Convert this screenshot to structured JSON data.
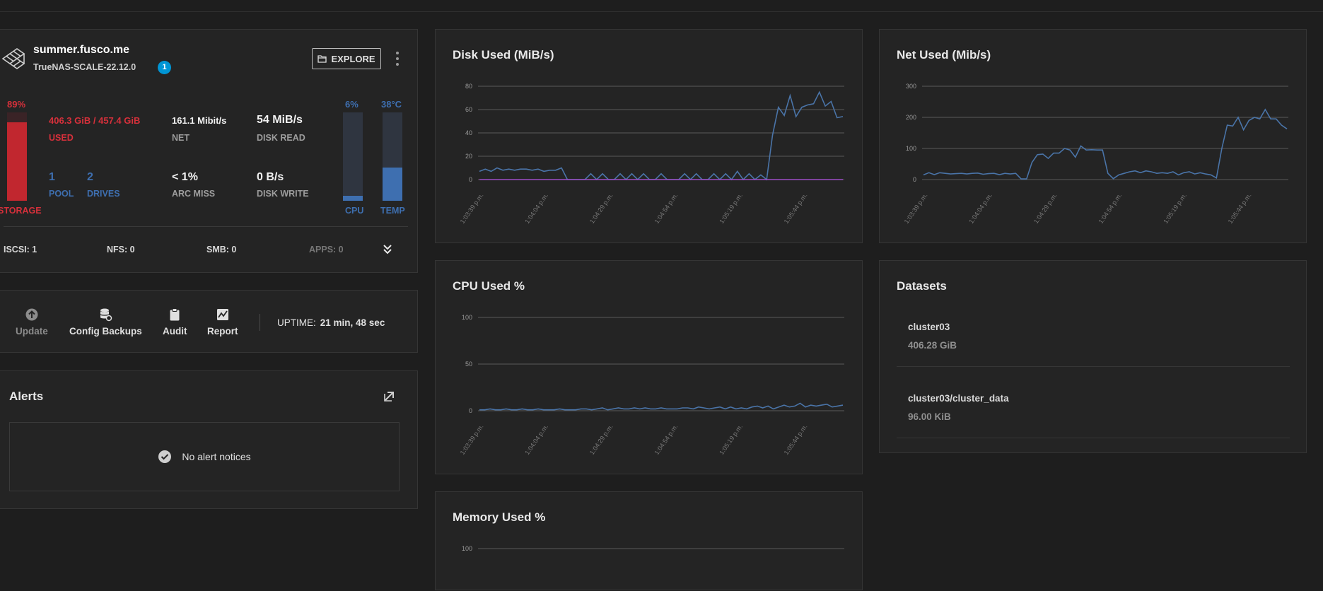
{
  "system": {
    "hostname": "summer.fusco.me",
    "version": "TrueNAS-SCALE-22.12.0",
    "update_badge": "1",
    "explore_label": "EXPLORE",
    "storage_pct": "89%",
    "storage_fill": 0.89,
    "storage_label": "STORAGE",
    "used_value": "406.3 GiB / 457.4 GiB",
    "used_label": "USED",
    "pool_count": "1",
    "pool_label": "POOL",
    "drives_count": "2",
    "drives_label": "DRIVES",
    "net_value": "161.1 Mibit/s",
    "net_label": "NET",
    "arc_value": "< 1%",
    "arc_label": "ARC MISS",
    "disk_read_value": "54 MiB/s",
    "disk_read_label": "DISK READ",
    "disk_write_value": "0 B/s",
    "disk_write_label": "DISK WRITE",
    "cpu_pct": "6%",
    "cpu_fill": 0.06,
    "cpu_label": "CPU",
    "temp_value": "38°C",
    "temp_fill": 0.38,
    "temp_label": "TEMP",
    "services": {
      "iscsi": "ISCSI: 1",
      "nfs": "NFS: 0",
      "smb": "SMB: 0",
      "apps": "APPS: 0"
    }
  },
  "actions": {
    "update": "Update",
    "config_backups": "Config Backups",
    "audit": "Audit",
    "report": "Report",
    "uptime_label": "UPTIME:",
    "uptime_value": "21 min, 48 sec"
  },
  "alerts": {
    "title": "Alerts",
    "empty_text": "No alert notices"
  },
  "datasets": {
    "title": "Datasets",
    "items": [
      {
        "name": "cluster03",
        "size": "406.28 GiB"
      },
      {
        "name": "cluster03/cluster_data",
        "size": "96.00 KiB"
      }
    ]
  },
  "colors": {
    "accent_red": "#d6303b",
    "accent_blue": "#3e6fb0",
    "line_blue": "#4a74a8",
    "line_purple": "#9b4dc4"
  },
  "chart_data": [
    {
      "id": "disk",
      "type": "line",
      "title": "Disk Used (MiB/s)",
      "ylim": [
        0,
        80
      ],
      "yticks": [
        "0",
        "20",
        "40",
        "60",
        "80"
      ],
      "ytick_values": [
        0,
        20,
        40,
        60,
        80
      ],
      "xtick_labels": [
        "1:03:39 p.m.",
        "1:04:04 p.m.",
        "1:04:29 p.m.",
        "1:04:54 p.m.",
        "1:05:19 p.m.",
        "1:05:44 p.m."
      ],
      "series": [
        {
          "name": "read",
          "color": "#4a74a8",
          "values": [
            7,
            9,
            7,
            10,
            8,
            9,
            8,
            9,
            9,
            8,
            9,
            7,
            8,
            8,
            10,
            0,
            0,
            0,
            0,
            5,
            0,
            5,
            0,
            0,
            5,
            0,
            5,
            0,
            5,
            0,
            0,
            5,
            0,
            0,
            0,
            5,
            0,
            5,
            0,
            0,
            5,
            0,
            5,
            0,
            7,
            0,
            5,
            0,
            4,
            0,
            38,
            62,
            55,
            72,
            54,
            62,
            64,
            65,
            75,
            63,
            67,
            53,
            54
          ]
        },
        {
          "name": "write",
          "color": "#9b4dc4",
          "values": [
            0,
            0,
            0,
            0,
            0,
            0,
            0,
            0,
            0,
            0,
            0,
            0,
            0,
            0,
            0,
            0,
            0,
            0,
            0,
            0,
            0,
            0,
            0,
            0,
            0,
            0,
            0,
            0,
            0,
            0,
            0,
            0,
            0,
            0,
            0,
            0,
            0,
            0,
            0,
            0,
            0,
            0,
            0,
            0,
            0,
            0,
            0,
            0,
            0,
            0,
            0,
            0,
            0,
            0,
            0,
            0,
            0,
            0,
            0,
            0,
            0,
            0,
            0
          ]
        }
      ]
    },
    {
      "id": "net",
      "type": "line",
      "title": "Net Used (Mib/s)",
      "ylim": [
        0,
        300
      ],
      "yticks": [
        "0",
        "100",
        "200",
        "300"
      ],
      "ytick_values": [
        0,
        100,
        200,
        300
      ],
      "xtick_labels": [
        "1:03:39 p.m.",
        "1:04:04 p.m.",
        "1:04:29 p.m.",
        "1:04:54 p.m.",
        "1:05:19 p.m.",
        "1:05:44 p.m."
      ],
      "series": [
        {
          "name": "traffic",
          "color": "#4a74a8",
          "values": [
            15,
            22,
            16,
            22,
            20,
            18,
            19,
            20,
            18,
            20,
            21,
            17,
            19,
            20,
            16,
            20,
            18,
            20,
            2,
            2,
            55,
            80,
            82,
            68,
            85,
            85,
            100,
            95,
            72,
            108,
            95,
            96,
            95,
            95,
            20,
            3,
            15,
            20,
            25,
            28,
            22,
            28,
            25,
            20,
            22,
            20,
            25,
            15,
            22,
            25,
            18,
            22,
            18,
            15,
            5,
            100,
            175,
            172,
            200,
            160,
            190,
            200,
            195,
            225,
            195,
            195,
            175,
            163
          ]
        }
      ]
    },
    {
      "id": "cpu",
      "type": "line",
      "title": "CPU Used %",
      "ylim": [
        0,
        100
      ],
      "yticks": [
        "0",
        "50",
        "100"
      ],
      "ytick_values": [
        0,
        50,
        100
      ],
      "xtick_labels": [
        "1:03:39 p.m.",
        "1:04:04 p.m.",
        "1:04:29 p.m.",
        "1:04:54 p.m.",
        "1:05:19 p.m.",
        "1:05:44 p.m."
      ],
      "series": [
        {
          "name": "cpu",
          "color": "#4a74a8",
          "values": [
            1,
            1,
            2,
            1,
            1,
            2,
            1,
            1,
            2,
            1,
            1,
            2,
            1,
            1,
            1,
            2,
            1,
            1,
            1,
            2,
            2,
            1,
            2,
            3,
            1,
            2,
            3,
            2,
            2,
            3,
            2,
            3,
            2,
            2,
            3,
            2,
            2,
            2,
            3,
            3,
            2,
            4,
            3,
            2,
            3,
            4,
            2,
            4,
            2,
            3,
            2,
            4,
            5,
            3,
            5,
            2,
            4,
            6,
            4,
            5,
            8,
            4,
            6,
            5,
            6,
            7,
            4,
            5,
            6
          ]
        }
      ]
    },
    {
      "id": "mem",
      "type": "line",
      "title": "Memory Used %",
      "ylim": [
        0,
        100
      ],
      "yticks": [
        "100"
      ],
      "ytick_values": [
        100
      ],
      "xtick_labels": [],
      "series": []
    }
  ]
}
